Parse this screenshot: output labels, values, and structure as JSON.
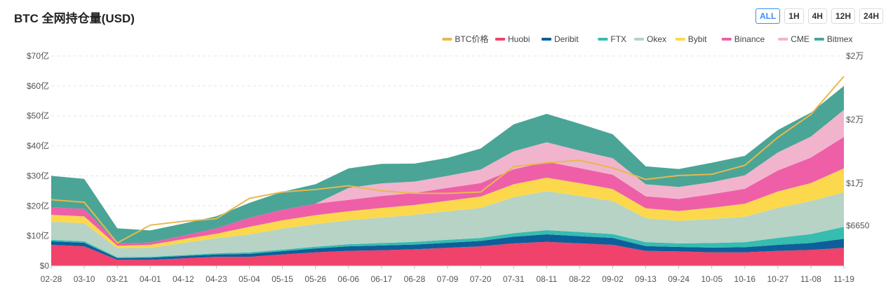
{
  "header": {
    "title": "BTC 全网持仓量(USD)",
    "range_tabs": [
      {
        "label": "ALL",
        "active": true
      },
      {
        "label": "1H",
        "active": false
      },
      {
        "label": "4H",
        "active": false
      },
      {
        "label": "12H",
        "active": false
      },
      {
        "label": "24H",
        "active": false
      }
    ]
  },
  "chart_data": {
    "type": "area",
    "stacked": true,
    "legend_position": "top-right",
    "x_ticks": [
      "02-28",
      "03-10",
      "03-21",
      "04-01",
      "04-12",
      "04-23",
      "05-04",
      "05-15",
      "05-26",
      "06-06",
      "06-17",
      "06-28",
      "07-09",
      "07-20",
      "07-31",
      "08-11",
      "08-22",
      "09-02",
      "09-13",
      "09-24",
      "10-05",
      "10-16",
      "10-27",
      "11-08",
      "11-19"
    ],
    "y_left": {
      "ticks": [
        "$0",
        "$10亿",
        "$20亿",
        "$30亿",
        "$40亿",
        "$50亿",
        "$60亿",
        "$70亿"
      ],
      "ylim": [
        0,
        70
      ],
      "grid": true
    },
    "y_right": {
      "ticks": [
        "$6650",
        "$1万",
        "$2万",
        "$2万"
      ],
      "tick_values": [
        6650,
        10000,
        15000,
        20000
      ],
      "ylim": [
        3500,
        20000
      ]
    },
    "series": [
      {
        "name": "Huobi",
        "color": "#f0426b",
        "values": [
          7,
          6.5,
          2,
          2,
          2.5,
          3,
          3,
          3.8,
          4.5,
          5,
          5.2,
          5.5,
          6,
          6.5,
          7.5,
          8,
          7.5,
          7,
          5,
          4.8,
          4.5,
          4.5,
          5,
          5.3,
          6
        ]
      },
      {
        "name": "Deribit",
        "color": "#0d5f9a",
        "values": [
          1.2,
          1.2,
          0.6,
          0.7,
          0.8,
          0.8,
          1,
          1.1,
          1.3,
          1.5,
          1.6,
          1.6,
          1.7,
          1.8,
          2.2,
          2.5,
          2.4,
          2.3,
          1.6,
          1.5,
          1.6,
          1.7,
          2,
          2.3,
          3
        ]
      },
      {
        "name": "FTX",
        "color": "#37bcb0",
        "values": [
          0.5,
          0.5,
          0.3,
          0.3,
          0.3,
          0.4,
          0.5,
          0.5,
          0.6,
          0.7,
          0.8,
          0.9,
          1,
          1,
          1.2,
          1.4,
          1.4,
          1.3,
          1.3,
          1.2,
          1.5,
          1.7,
          2.3,
          3,
          4
        ]
      },
      {
        "name": "Okex",
        "color": "#b6d3c6",
        "values": [
          6,
          6,
          3,
          3,
          4,
          5,
          6,
          7,
          7.5,
          8,
          8.5,
          9,
          9.5,
          10,
          12,
          13,
          12,
          11,
          8,
          7.5,
          8,
          8.5,
          10,
          11,
          11.5
        ]
      },
      {
        "name": "Bybit",
        "color": "#fcd94c",
        "values": [
          2.3,
          2.3,
          0.8,
          1,
          1.3,
          1.5,
          2.5,
          2.8,
          3,
          3,
          3.2,
          3.3,
          3.5,
          3.8,
          4.3,
          4.5,
          4.3,
          4,
          3.3,
          3.3,
          3.8,
          4.3,
          5.5,
          6,
          8
        ]
      },
      {
        "name": "Binance",
        "color": "#ee5fa8",
        "values": [
          2.5,
          2.5,
          0.8,
          0.8,
          1.2,
          1.8,
          3,
          3.5,
          3.8,
          3.8,
          4,
          4,
          4.3,
          4.5,
          5,
          5.3,
          5,
          4.8,
          4,
          4,
          4.5,
          5,
          7,
          8.5,
          10.5
        ]
      },
      {
        "name": "CME",
        "color": "#f1b4cc",
        "values": [
          0,
          0,
          0,
          0,
          0,
          0,
          0,
          0,
          0,
          4,
          4.2,
          3.8,
          4,
          4.5,
          6,
          6.5,
          5.8,
          5.5,
          4,
          4,
          4,
          4.5,
          6,
          7,
          9
        ]
      },
      {
        "name": "Bitmex",
        "color": "#4aa596",
        "values": [
          10.5,
          10,
          5,
          4,
          4,
          4,
          5,
          6,
          6.5,
          6.5,
          6.5,
          6,
          6,
          7,
          9,
          9.5,
          9,
          8,
          6,
          6,
          6.5,
          6.5,
          7.5,
          8,
          8
        ]
      }
    ],
    "price_series": {
      "name": "BTC价格",
      "color": "#e8b84d",
      "values": [
        8700,
        8500,
        5300,
        6700,
        7000,
        7200,
        8800,
        9300,
        9500,
        9800,
        9400,
        9200,
        9200,
        9300,
        11300,
        11600,
        11800,
        11200,
        10300,
        10600,
        10700,
        11400,
        13600,
        15400,
        18400
      ]
    }
  }
}
